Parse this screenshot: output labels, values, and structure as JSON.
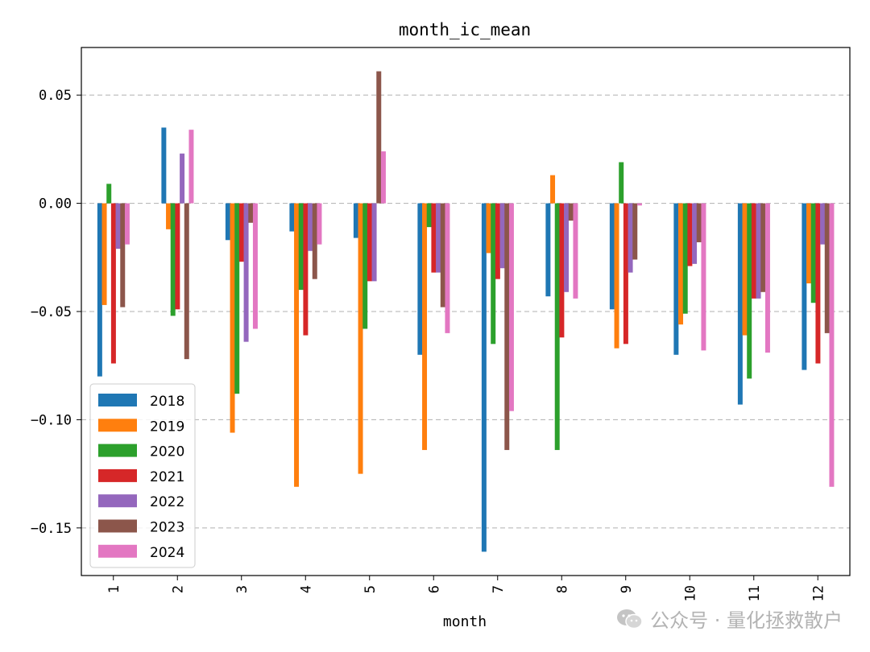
{
  "chart_data": {
    "type": "bar",
    "title": "month_ic_mean",
    "xlabel": "month",
    "ylabel": "",
    "ylim": [
      -0.172,
      0.072
    ],
    "yticks": [
      0.05,
      0.0,
      -0.05,
      -0.1,
      -0.15
    ],
    "ytick_labels": [
      "0.05",
      "0.00",
      "−0.05",
      "−0.10",
      "−0.15"
    ],
    "grid": "y-dashed",
    "legend_position": "bottom-left",
    "categories": [
      "1",
      "2",
      "3",
      "4",
      "5",
      "6",
      "7",
      "8",
      "9",
      "10",
      "11",
      "12"
    ],
    "series": [
      {
        "name": "2018",
        "color": "#1f77b4",
        "values": [
          -0.08,
          0.035,
          -0.017,
          -0.013,
          -0.016,
          -0.07,
          -0.161,
          -0.043,
          -0.049,
          -0.07,
          -0.093,
          -0.077
        ]
      },
      {
        "name": "2019",
        "color": "#ff7f0e",
        "values": [
          -0.047,
          -0.012,
          -0.106,
          -0.131,
          -0.125,
          -0.114,
          -0.023,
          0.013,
          -0.067,
          -0.056,
          -0.061,
          -0.037
        ]
      },
      {
        "name": "2020",
        "color": "#2ca02c",
        "values": [
          0.009,
          -0.052,
          -0.088,
          -0.04,
          -0.058,
          -0.011,
          -0.065,
          -0.114,
          0.019,
          -0.051,
          -0.081,
          -0.046
        ]
      },
      {
        "name": "2021",
        "color": "#d62728",
        "values": [
          -0.074,
          -0.049,
          -0.027,
          -0.061,
          -0.036,
          -0.032,
          -0.035,
          -0.062,
          -0.065,
          -0.029,
          -0.044,
          -0.074
        ]
      },
      {
        "name": "2022",
        "color": "#9467bd",
        "values": [
          -0.021,
          0.023,
          -0.064,
          -0.022,
          -0.036,
          -0.032,
          -0.03,
          -0.041,
          -0.032,
          -0.028,
          -0.044,
          -0.019
        ]
      },
      {
        "name": "2023",
        "color": "#8c564b",
        "values": [
          -0.048,
          -0.072,
          -0.009,
          -0.035,
          0.061,
          -0.048,
          -0.114,
          -0.008,
          -0.026,
          -0.018,
          -0.041,
          -0.06
        ]
      },
      {
        "name": "2024",
        "color": "#e377c2",
        "values": [
          -0.019,
          0.034,
          -0.058,
          -0.019,
          0.024,
          -0.06,
          -0.096,
          -0.044,
          -0.001,
          -0.068,
          -0.069,
          -0.131
        ]
      }
    ]
  },
  "watermark": {
    "icon": "wechat-icon",
    "text": "公众号 · 量化拯救散户"
  }
}
